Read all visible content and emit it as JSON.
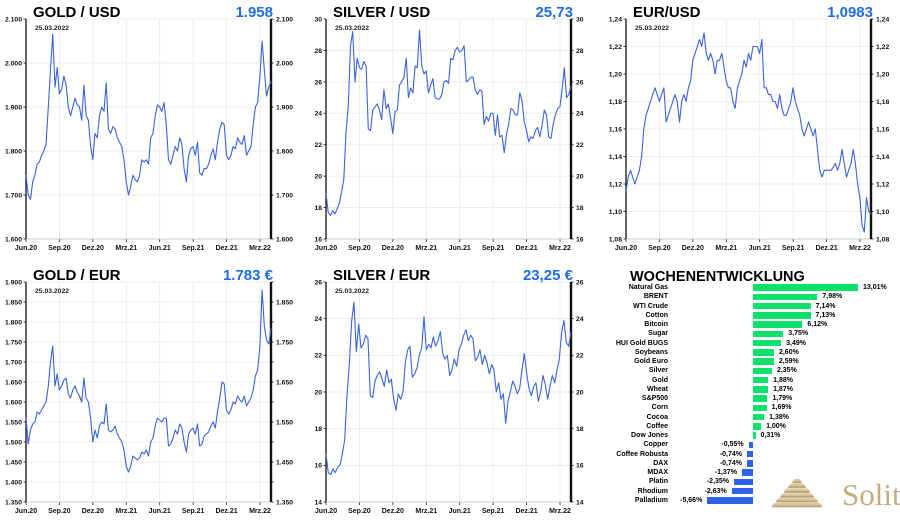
{
  "colors": {
    "value_text": "#1e6ce8",
    "line_blue": "#3a63de",
    "bar_positive": "#0ce26a",
    "bar_negative": "#2e63e8",
    "logo_tan": "#c5ab7d"
  },
  "logo": {
    "text": "Solit"
  },
  "chart_data": [
    {
      "type": "line",
      "title": "GOLD / USD",
      "current_value": "1.958",
      "date_annotation": "25.03.2022",
      "x_tick_labels": [
        "Jun.20",
        "Sep.20",
        "Dez.20",
        "Mrz.21",
        "Jun.21",
        "Sep.21",
        "Dez.21",
        "Mrz.22"
      ],
      "ylim": [
        1600,
        2100
      ],
      "ytick_step": 100,
      "y_label_format": "de-thousands",
      "right_axis_every_other": false,
      "grid": true,
      "line_color": "#3a63de",
      "values": [
        1745,
        1700,
        1690,
        1730,
        1745,
        1770,
        1775,
        1790,
        1800,
        1815,
        1900,
        1985,
        2065,
        1945,
        1990,
        1930,
        1940,
        1970,
        1950,
        1900,
        1880,
        1900,
        1920,
        1905,
        1900,
        1870,
        1950,
        1880,
        1870,
        1810,
        1780,
        1840,
        1830,
        1880,
        1900,
        1890,
        1955,
        1850,
        1840,
        1855,
        1850,
        1830,
        1820,
        1810,
        1780,
        1730,
        1700,
        1720,
        1745,
        1735,
        1730,
        1745,
        1780,
        1775,
        1780,
        1770,
        1830,
        1840,
        1880,
        1905,
        1900,
        1890,
        1910,
        1860,
        1780,
        1770,
        1790,
        1810,
        1800,
        1830,
        1815,
        1760,
        1730,
        1790,
        1805,
        1810,
        1790,
        1820,
        1750,
        1745,
        1760,
        1760,
        1770,
        1790,
        1805,
        1780,
        1820,
        1850,
        1865,
        1860,
        1790,
        1780,
        1790,
        1810,
        1805,
        1830,
        1820,
        1815,
        1835,
        1790,
        1800,
        1810,
        1860,
        1900,
        1910,
        1970,
        2050,
        1985,
        1925,
        1945,
        1958
      ]
    },
    {
      "type": "line",
      "title": "SILVER / USD",
      "current_value": "25,73",
      "date_annotation": "25.03.2022",
      "x_tick_labels": [
        "Jun.20",
        "Sep.20",
        "Dez.20",
        "Mrz.21",
        "Jun.21",
        "Sep.21",
        "Dez.21",
        "Mrz.22"
      ],
      "ylim": [
        16,
        30
      ],
      "ytick_step": 2,
      "y_label_format": "int",
      "right_axis_every_other": false,
      "grid": true,
      "line_color": "#3a63de",
      "values": [
        18.9,
        17.7,
        17.5,
        17.8,
        17.6,
        17.9,
        18.3,
        19.0,
        19.8,
        22.8,
        24.5,
        28.3,
        29.2,
        26.0,
        27.5,
        26.9,
        26.8,
        27.3,
        27.0,
        23.0,
        22.9,
        24.2,
        24.4,
        24.6,
        24.2,
        23.6,
        25.5,
        24.3,
        24.6,
        23.7,
        22.7,
        24.1,
        24.2,
        25.8,
        26.0,
        26.3,
        27.5,
        25.0,
        25.6,
        25.3,
        27.0,
        26.9,
        29.3,
        27.0,
        26.5,
        26.7,
        25.3,
        25.8,
        26.2,
        25.0,
        24.9,
        24.9,
        25.2,
        26.0,
        26.1,
        25.9,
        27.5,
        27.4,
        28.0,
        28.2,
        27.9,
        28.0,
        28.3,
        26.0,
        26.1,
        26.3,
        26.3,
        25.5,
        25.2,
        25.5,
        25.4,
        23.3,
        23.8,
        23.5,
        24.0,
        24.0,
        22.6,
        23.9,
        22.5,
        22.6,
        21.5,
        22.6,
        23.3,
        24.3,
        24.2,
        23.9,
        23.9,
        25.3,
        24.8,
        23.5,
        22.9,
        22.2,
        22.5,
        22.4,
        22.9,
        23.1,
        22.5,
        23.2,
        24.2,
        23.9,
        22.5,
        22.4,
        23.3,
        23.9,
        24.3,
        24.4,
        25.5,
        26.9,
        25.0,
        25.2,
        25.73
      ]
    },
    {
      "type": "line",
      "title": "EUR/USD",
      "current_value": "1,0983",
      "date_annotation": "25.03.2022",
      "x_tick_labels": [
        "Jun.20",
        "Sep.20",
        "Dez.20",
        "Mrz.21",
        "Jun.21",
        "Sep.21",
        "Dez.21",
        "Mrz.22"
      ],
      "ylim": [
        1.08,
        1.24
      ],
      "ytick_step": 0.02,
      "y_label_format": "de-2dec",
      "right_axis_every_other": false,
      "grid": true,
      "line_color": "#3a63de",
      "values": [
        1.115,
        1.125,
        1.13,
        1.125,
        1.12,
        1.125,
        1.13,
        1.14,
        1.16,
        1.17,
        1.175,
        1.18,
        1.185,
        1.19,
        1.185,
        1.18,
        1.185,
        1.19,
        1.165,
        1.17,
        1.175,
        1.18,
        1.185,
        1.18,
        1.165,
        1.18,
        1.185,
        1.18,
        1.19,
        1.195,
        1.21,
        1.215,
        1.22,
        1.225,
        1.22,
        1.23,
        1.215,
        1.21,
        1.215,
        1.21,
        1.2,
        1.21,
        1.21,
        1.215,
        1.205,
        1.195,
        1.19,
        1.19,
        1.18,
        1.175,
        1.19,
        1.195,
        1.2,
        1.21,
        1.205,
        1.215,
        1.21,
        1.22,
        1.22,
        1.22,
        1.215,
        1.225,
        1.19,
        1.19,
        1.185,
        1.185,
        1.18,
        1.18,
        1.175,
        1.185,
        1.175,
        1.17,
        1.17,
        1.175,
        1.18,
        1.19,
        1.18,
        1.175,
        1.17,
        1.16,
        1.155,
        1.16,
        1.165,
        1.16,
        1.155,
        1.16,
        1.145,
        1.13,
        1.125,
        1.13,
        1.13,
        1.13,
        1.13,
        1.132,
        1.135,
        1.13,
        1.135,
        1.145,
        1.135,
        1.125,
        1.13,
        1.135,
        1.145,
        1.135,
        1.12,
        1.11,
        1.09,
        1.085,
        1.11,
        1.1,
        1.0983
      ]
    },
    {
      "type": "line",
      "title": "GOLD / EUR",
      "current_value": "1.783 €",
      "date_annotation": "25.03.2022",
      "x_tick_labels": [
        "Jun.20",
        "Sep.20",
        "Dez.20",
        "Mrz.21",
        "Jun.21",
        "Sep.21",
        "Dez.21",
        "Mrz.22"
      ],
      "ylim": [
        1350,
        1900
      ],
      "ytick_step": 50,
      "y_label_format": "de-thousands",
      "right_axis_every_other": true,
      "grid": true,
      "line_color": "#3a63de",
      "values": [
        1560,
        1495,
        1530,
        1545,
        1550,
        1575,
        1570,
        1580,
        1590,
        1600,
        1640,
        1700,
        1740,
        1640,
        1670,
        1630,
        1640,
        1655,
        1660,
        1620,
        1610,
        1630,
        1640,
        1625,
        1615,
        1600,
        1660,
        1610,
        1600,
        1560,
        1500,
        1530,
        1510,
        1540,
        1550,
        1545,
        1595,
        1530,
        1525,
        1530,
        1540,
        1520,
        1510,
        1500,
        1480,
        1440,
        1425,
        1440,
        1465,
        1460,
        1455,
        1460,
        1475,
        1470,
        1480,
        1465,
        1500,
        1510,
        1540,
        1560,
        1555,
        1550,
        1560,
        1560,
        1490,
        1495,
        1510,
        1530,
        1520,
        1545,
        1535,
        1500,
        1475,
        1520,
        1530,
        1535,
        1520,
        1545,
        1490,
        1495,
        1515,
        1520,
        1525,
        1540,
        1550,
        1535,
        1575,
        1610,
        1650,
        1645,
        1580,
        1570,
        1580,
        1600,
        1595,
        1615,
        1605,
        1600,
        1615,
        1590,
        1600,
        1610,
        1630,
        1665,
        1680,
        1740,
        1880,
        1790,
        1755,
        1745,
        1783
      ]
    },
    {
      "type": "line",
      "title": "SILVER / EUR",
      "current_value": "23,25 €",
      "date_annotation": "25.03.2022",
      "x_tick_labels": [
        "Jun.20",
        "Sep.20",
        "Dez.20",
        "Mrz.21",
        "Jun.21",
        "Sep.21",
        "Dez.21",
        "Mrz.22"
      ],
      "ylim": [
        14,
        26
      ],
      "ytick_step": 2,
      "y_label_format": "int",
      "right_axis_every_other": false,
      "grid": true,
      "line_color": "#3a63de",
      "values": [
        16.6,
        15.6,
        15.5,
        15.8,
        15.6,
        15.9,
        16.0,
        16.6,
        17.4,
        19.8,
        21.5,
        23.9,
        24.9,
        22.2,
        23.7,
        22.4,
        22.6,
        23.1,
        22.9,
        19.8,
        19.7,
        20.6,
        20.9,
        21.1,
        20.7,
        20.3,
        21.2,
        20.5,
        20.7,
        19.6,
        19.0,
        19.9,
        19.6,
        20.0,
        21.6,
        22.3,
        22.5,
        20.8,
        21.0,
        21.3,
        22.0,
        22.4,
        24.1,
        22.3,
        22.6,
        22.4,
        23.0,
        22.5,
        22.8,
        23.3,
        22.1,
        21.8,
        22.0,
        20.9,
        21.2,
        21.8,
        21.4,
        22.3,
        22.6,
        23.1,
        23.4,
        22.8,
        23.1,
        22.9,
        21.7,
        21.9,
        22.3,
        21.5,
        22.0,
        21.6,
        21.0,
        21.5,
        21.2,
        20.0,
        20.5,
        19.6,
        19.9,
        18.3,
        19.5,
        20.0,
        20.6,
        20.3,
        19.9,
        20.2,
        21.2,
        22.1,
        21.0,
        20.2,
        19.8,
        20.3,
        20.5,
        19.5,
        20.0,
        20.9,
        20.4,
        19.6,
        20.3,
        20.9,
        20.5,
        21.2,
        21.8,
        23.3,
        23.9,
        22.7,
        22.5,
        23.25
      ]
    },
    {
      "type": "bar",
      "orientation": "horizontal",
      "title": "WOCHENENTWICKLUNG",
      "positive_color": "#0ce26a",
      "negative_color": "#2e63e8",
      "categories": [
        "Natural Gas",
        "BRENT",
        "WTI Crude",
        "Cotton",
        "Bitcoin",
        "Sugar",
        "HUI Gold BUGS",
        "Soybeans",
        "Gold Euro",
        "Silver",
        "Gold",
        "Wheat",
        "S&P500",
        "Corn",
        "Cocoa",
        "Coffee",
        "Dow Jones",
        "Copper",
        "Coffee Robusta",
        "DAX",
        "MDAX",
        "Platin",
        "Rhodium",
        "Palladium"
      ],
      "values": [
        13.01,
        7.98,
        7.14,
        7.13,
        6.12,
        3.75,
        3.49,
        2.6,
        2.59,
        2.35,
        1.88,
        1.87,
        1.79,
        1.69,
        1.38,
        1.0,
        0.31,
        -0.55,
        -0.74,
        -0.74,
        -1.37,
        -2.35,
        -2.63,
        -5.66
      ],
      "value_labels": [
        "13,01%",
        "7,98%",
        "7,14%",
        "7,13%",
        "6,12%",
        "3,75%",
        "3,49%",
        "2,60%",
        "2,59%",
        "2,35%",
        "1,88%",
        "1,87%",
        "1,79%",
        "1,69%",
        "1,38%",
        "1,00%",
        "0,31%",
        "-0,55%",
        "-0,74%",
        "-0,74%",
        "-1,37%",
        "-2,35%",
        "-2,63%",
        "-5,66%"
      ]
    }
  ]
}
